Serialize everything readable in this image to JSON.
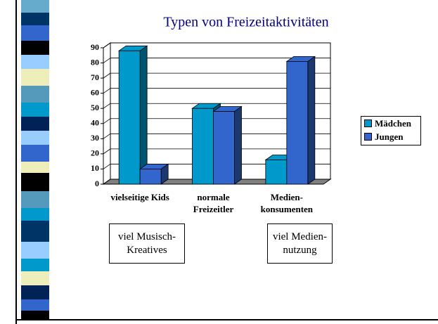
{
  "chart_data": {
    "type": "bar",
    "title": "Typen von Freizeitaktivitäten",
    "categories": [
      "vielseitige Kids",
      "normale\nFreizeitler",
      "Medien-\nkonsumenten"
    ],
    "series": [
      {
        "name": "Mädchen",
        "color": "#0099cc",
        "values": [
          88,
          50,
          16
        ]
      },
      {
        "name": "Jungen",
        "color": "#3366cc",
        "values": [
          10,
          48,
          81
        ]
      }
    ],
    "ylim": [
      0,
      90
    ],
    "yticks": [
      0,
      10,
      20,
      30,
      40,
      50,
      60,
      70,
      80,
      90
    ],
    "grid": true,
    "legend": "right",
    "annotations": [
      "viel Musisch-\nKreatives",
      "viel Medien-\nnutzung"
    ]
  }
}
